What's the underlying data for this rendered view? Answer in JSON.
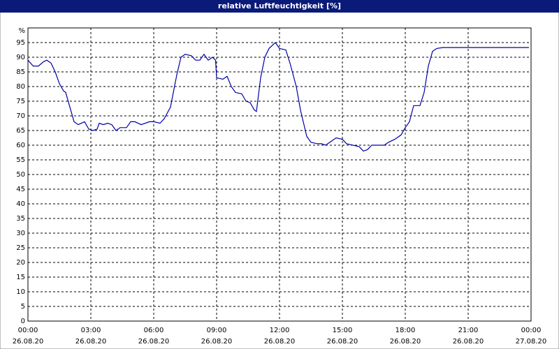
{
  "chart_data": {
    "type": "line",
    "title": "relative Luftfeuchtigkeit [%]",
    "y_unit": "%",
    "color": "#0000a8",
    "grid": true,
    "xlim": [
      0,
      24
    ],
    "ylim": [
      0,
      100
    ],
    "xticks": [
      {
        "value": 0,
        "label": "00:00",
        "date": "26.08.20"
      },
      {
        "value": 3,
        "label": "03:00",
        "date": "26.08.20"
      },
      {
        "value": 6,
        "label": "06:00",
        "date": "26.08.20"
      },
      {
        "value": 9,
        "label": "09:00",
        "date": "26.08.20"
      },
      {
        "value": 12,
        "label": "12:00",
        "date": "26.08.20"
      },
      {
        "value": 15,
        "label": "15:00",
        "date": "26.08.20"
      },
      {
        "value": 18,
        "label": "18:00",
        "date": "26.08.20"
      },
      {
        "value": 21,
        "label": "21:00",
        "date": "26.08.20"
      },
      {
        "value": 24,
        "label": "00:00",
        "date": "27.08.20"
      }
    ],
    "yticks": [
      0,
      5,
      10,
      15,
      20,
      25,
      30,
      35,
      40,
      45,
      50,
      55,
      60,
      65,
      70,
      75,
      80,
      85,
      90,
      95
    ],
    "x": [
      0,
      0.25,
      0.5,
      0.75,
      0.9,
      1.1,
      1.3,
      1.5,
      1.7,
      1.8,
      2.0,
      2.2,
      2.4,
      2.7,
      2.9,
      3.1,
      3.3,
      3.4,
      3.6,
      3.8,
      4.0,
      4.2,
      4.4,
      4.7,
      4.9,
      5.1,
      5.4,
      5.8,
      6.0,
      6.3,
      6.5,
      6.8,
      7.1,
      7.3,
      7.5,
      7.8,
      8.0,
      8.2,
      8.4,
      8.6,
      8.8,
      8.95,
      9.0,
      9.3,
      9.5,
      9.7,
      9.9,
      10.2,
      10.4,
      10.6,
      10.8,
      10.9,
      11.1,
      11.3,
      11.5,
      11.8,
      12.0,
      12.3,
      12.5,
      12.8,
      13.0,
      13.3,
      13.5,
      13.8,
      14.0,
      14.2,
      14.5,
      14.7,
      15.0,
      15.2,
      15.5,
      15.8,
      16.0,
      16.2,
      16.4,
      16.7,
      17.0,
      17.2,
      17.5,
      17.8,
      18.0,
      18.2,
      18.4,
      18.7,
      18.9,
      19.1,
      19.3,
      19.5,
      19.8,
      20.5,
      22.0,
      23.9
    ],
    "values": [
      89,
      87,
      87,
      88.5,
      89,
      88,
      85,
      81,
      78.5,
      78,
      73,
      68,
      67,
      68,
      65.5,
      65,
      65.5,
      67.5,
      67,
      67.5,
      67,
      65,
      66,
      66,
      68,
      68,
      67,
      68,
      68,
      67.5,
      69,
      73,
      84,
      90,
      91,
      90.5,
      89,
      89,
      91,
      89,
      90,
      89,
      83,
      82.5,
      83.5,
      80,
      78,
      77.5,
      75,
      74.5,
      72,
      71.5,
      83,
      90,
      93,
      95,
      93,
      92.5,
      88,
      80,
      72,
      63,
      61,
      60.5,
      60.5,
      60,
      61.5,
      62.5,
      62,
      60.5,
      60,
      59.5,
      58,
      58.5,
      60,
      60,
      60,
      61,
      62,
      63.5,
      66,
      68,
      73.5,
      73.5,
      78,
      87,
      92,
      93,
      93.3,
      93.3,
      93.3,
      93.3
    ]
  }
}
